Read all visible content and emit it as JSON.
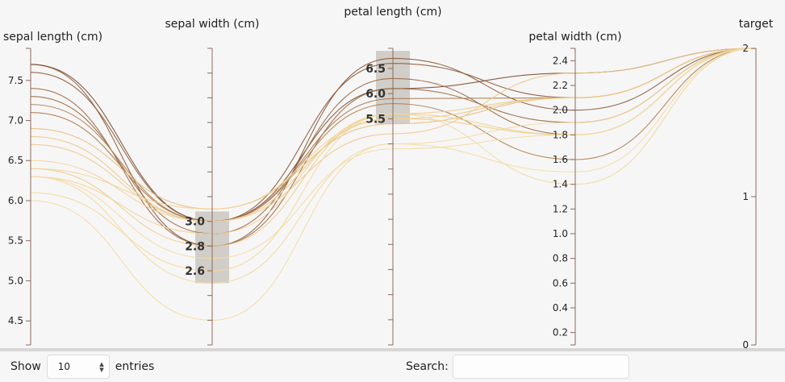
{
  "chart_data": {
    "type": "parallel_coordinates",
    "dimensions": [
      {
        "key": "sepal_length",
        "label": "sepal length (cm)",
        "range": [
          4.2,
          7.9
        ],
        "ticks": [
          "4.5",
          "5.0",
          "5.5",
          "6.0",
          "6.5",
          "7.0",
          "7.5"
        ]
      },
      {
        "key": "sepal_width",
        "label": "sepal width (cm)",
        "range": [
          2.0,
          4.4
        ],
        "ticks": [
          "",
          "",
          "",
          "",
          "",
          "",
          "",
          "",
          "",
          "",
          "",
          "",
          ""
        ],
        "brush": {
          "range": [
            2.5,
            3.08
          ],
          "labels": [
            "3.0",
            "2.8",
            "2.6"
          ]
        }
      },
      {
        "key": "petal_length",
        "label": "petal length (cm)",
        "range": [
          1.0,
          6.9
        ],
        "ticks": [
          "",
          "",
          "",
          "",
          "",
          "",
          "",
          "",
          "",
          "",
          "",
          ""
        ],
        "brush": {
          "range": [
            5.4,
            6.85
          ],
          "labels": [
            "6.5",
            "6.0",
            "5.5"
          ]
        }
      },
      {
        "key": "petal_width",
        "label": "petal width (cm)",
        "range": [
          0.1,
          2.5
        ],
        "ticks": [
          "0.2",
          "0.4",
          "0.6",
          "0.8",
          "1.0",
          "1.2",
          "1.4",
          "1.6",
          "1.8",
          "2.0",
          "2.2",
          "2.4"
        ]
      },
      {
        "key": "target",
        "label": "target",
        "range": [
          0,
          2
        ],
        "ticks": [
          "0",
          "1",
          "2"
        ]
      }
    ],
    "series": [
      {
        "values": [
          7.7,
          2.8,
          6.7,
          2.0,
          2
        ],
        "color": "#8a5a3c"
      },
      {
        "values": [
          7.7,
          3.0,
          6.1,
          2.3,
          2
        ],
        "color": "#7a4b30"
      },
      {
        "values": [
          7.6,
          3.0,
          6.6,
          2.1,
          2
        ],
        "color": "#8a5a3c"
      },
      {
        "values": [
          7.4,
          2.8,
          6.1,
          1.9,
          2
        ],
        "color": "#9a6a45"
      },
      {
        "values": [
          7.3,
          2.9,
          6.3,
          1.8,
          2
        ],
        "color": "#9a6a45"
      },
      {
        "values": [
          7.2,
          3.0,
          5.8,
          1.6,
          2
        ],
        "color": "#b0814f"
      },
      {
        "values": [
          7.1,
          3.0,
          5.9,
          2.1,
          2
        ],
        "color": "#a87a4c"
      },
      {
        "values": [
          6.9,
          3.1,
          5.4,
          2.1,
          2
        ],
        "color": "#e6c080"
      },
      {
        "values": [
          6.8,
          3.0,
          5.5,
          2.1,
          2
        ],
        "color": "#ebc98a"
      },
      {
        "values": [
          6.7,
          3.0,
          5.2,
          2.3,
          2
        ],
        "color": "#ecc98c"
      },
      {
        "values": [
          6.5,
          3.0,
          5.5,
          1.8,
          2
        ],
        "color": "#f0d394"
      },
      {
        "values": [
          6.4,
          2.8,
          5.6,
          2.1,
          2
        ],
        "color": "#edcc8e"
      },
      {
        "values": [
          6.4,
          3.1,
          5.5,
          1.8,
          2
        ],
        "color": "#f0d59a"
      },
      {
        "values": [
          6.3,
          2.9,
          5.6,
          1.8,
          2
        ],
        "color": "#efd294"
      },
      {
        "values": [
          6.3,
          2.5,
          5.0,
          1.9,
          2
        ],
        "color": "#f2d89e"
      },
      {
        "values": [
          6.1,
          2.6,
          5.6,
          1.4,
          2
        ],
        "color": "#f2d89e"
      },
      {
        "values": [
          6.0,
          2.2,
          5.0,
          1.5,
          2
        ],
        "color": "#f3dca4"
      },
      {
        "values": [
          6.3,
          2.7,
          4.9,
          1.8,
          2
        ],
        "color": "#f3dca4"
      }
    ]
  },
  "footer": {
    "show_label": "Show",
    "entries_value": "10",
    "entries_label": "entries",
    "search_label": "Search:",
    "search_value": ""
  },
  "colors": {
    "axis": "#8b6a5a",
    "brush": "#cfcac6",
    "background": "#f7f6f6"
  }
}
